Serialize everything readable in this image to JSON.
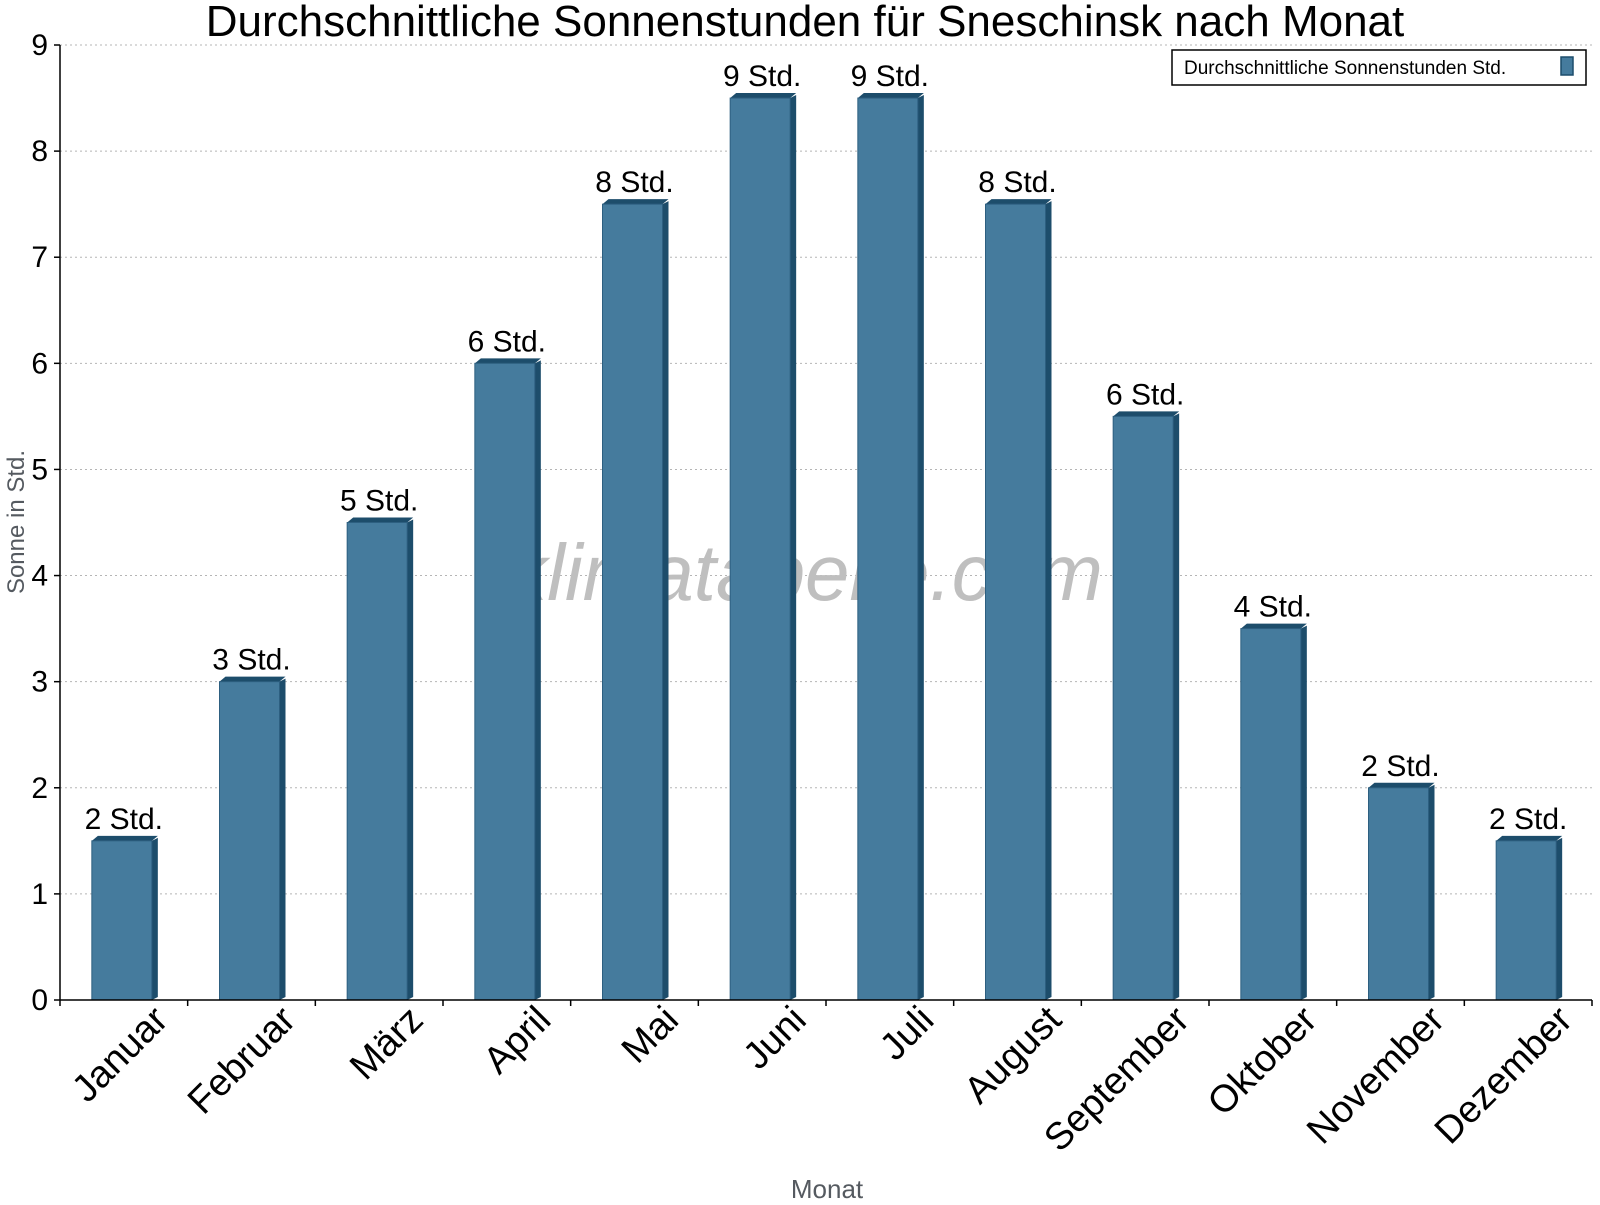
{
  "chart_data": {
    "type": "bar",
    "title": "Durchschnittliche Sonnenstunden für Sneschinsk nach Monat",
    "xlabel": "Monat",
    "ylabel": "Sonne in Std.",
    "ylim": [
      0,
      9
    ],
    "yticks": [
      "0",
      "1",
      "2",
      "3",
      "4",
      "5",
      "6",
      "7",
      "8",
      "9"
    ],
    "grid": true,
    "legend_position": "top-right",
    "categories": [
      "Januar",
      "Februar",
      "März",
      "April",
      "Mai",
      "Juni",
      "Juli",
      "August",
      "September",
      "Oktober",
      "November",
      "Dezember"
    ],
    "series": [
      {
        "name": "Durchschnittliche Sonnenstunden Std.",
        "values": [
          1.5,
          3,
          4.5,
          6,
          7.5,
          8.5,
          8.5,
          7.5,
          5.5,
          3.5,
          2,
          1.5
        ],
        "labels": [
          "2 Std.",
          "3 Std.",
          "5 Std.",
          "6 Std.",
          "8 Std.",
          "9 Std.",
          "9 Std.",
          "8 Std.",
          "6 Std.",
          "4 Std.",
          "2 Std.",
          "2 Std."
        ],
        "color": "#457b9d",
        "edge_color": "#1d4d6b"
      }
    ],
    "watermark": "klimatabelle.com"
  }
}
